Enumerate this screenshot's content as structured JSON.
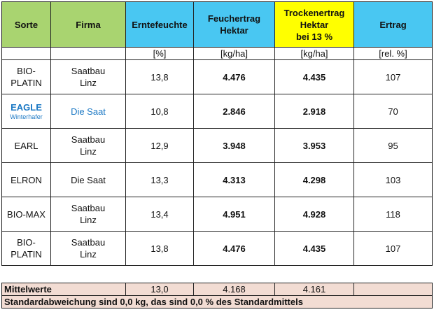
{
  "headers": {
    "sorte": "Sorte",
    "firma": "Firma",
    "erntefeuchte": "Erntefeuchte",
    "feuchtertrag_1": "Feuchertrag",
    "feuchtertrag_2": "Hektar",
    "trockenertrag_1": "Trockenertrag",
    "trockenertrag_2": "Hektar",
    "trockenertrag_3": "bei 13 %",
    "ertrag": "Ertrag"
  },
  "units": {
    "erntefeuchte": "[%]",
    "feuchtertrag": "[kg/ha]",
    "trockenertrag": "[kg/ha]",
    "ertrag": "[rel. %]"
  },
  "rows": [
    {
      "sorte_1": "BIO-",
      "sorte_2": "PLATIN",
      "firma_1": "Saatbau",
      "firma_2": "Linz",
      "erntefeuchte": "13,8",
      "feuchtertrag": "4.476",
      "trockenertrag": "4.435",
      "ertrag": "107"
    },
    {
      "sorte_1": "EAGLE",
      "sorte_2": "Winterhafer",
      "firma_1": "Die Saat",
      "firma_2": "",
      "erntefeuchte": "10,8",
      "feuchtertrag": "2.846",
      "trockenertrag": "2.918",
      "ertrag": "70"
    },
    {
      "sorte_1": "EARL",
      "sorte_2": "",
      "firma_1": "Saatbau",
      "firma_2": "Linz",
      "erntefeuchte": "12,9",
      "feuchtertrag": "3.948",
      "trockenertrag": "3.953",
      "ertrag": "95"
    },
    {
      "sorte_1": "ELRON",
      "sorte_2": "",
      "firma_1": "Die Saat",
      "firma_2": "",
      "erntefeuchte": "13,3",
      "feuchtertrag": "4.313",
      "trockenertrag": "4.298",
      "ertrag": "103"
    },
    {
      "sorte_1": "BIO-MAX",
      "sorte_2": "",
      "firma_1": "Saatbau",
      "firma_2": "Linz",
      "erntefeuchte": "13,4",
      "feuchtertrag": "4.951",
      "trockenertrag": "4.928",
      "ertrag": "118"
    },
    {
      "sorte_1": "BIO-",
      "sorte_2": "PLATIN",
      "firma_1": "Saatbau",
      "firma_2": "Linz",
      "erntefeuchte": "13,8",
      "feuchtertrag": "4.476",
      "trockenertrag": "4.435",
      "ertrag": "107"
    }
  ],
  "footer": {
    "mittelwerte_label": "Mittelwerte",
    "mittel_erntefeuchte": "13,0",
    "mittel_feuchtertrag": "4.168",
    "mittel_trockenertrag": "4.161",
    "standardabweichung": "Standardabweichung sind 0,0 kg, das sind 0,0 % des Standardmittels"
  },
  "colors": {
    "header_green": "#a9d470",
    "header_cyan": "#49c7f2",
    "header_yellow": "#ffff00",
    "footer_bg": "#f2dcd3",
    "eagle_blue": "#1b78c4"
  }
}
